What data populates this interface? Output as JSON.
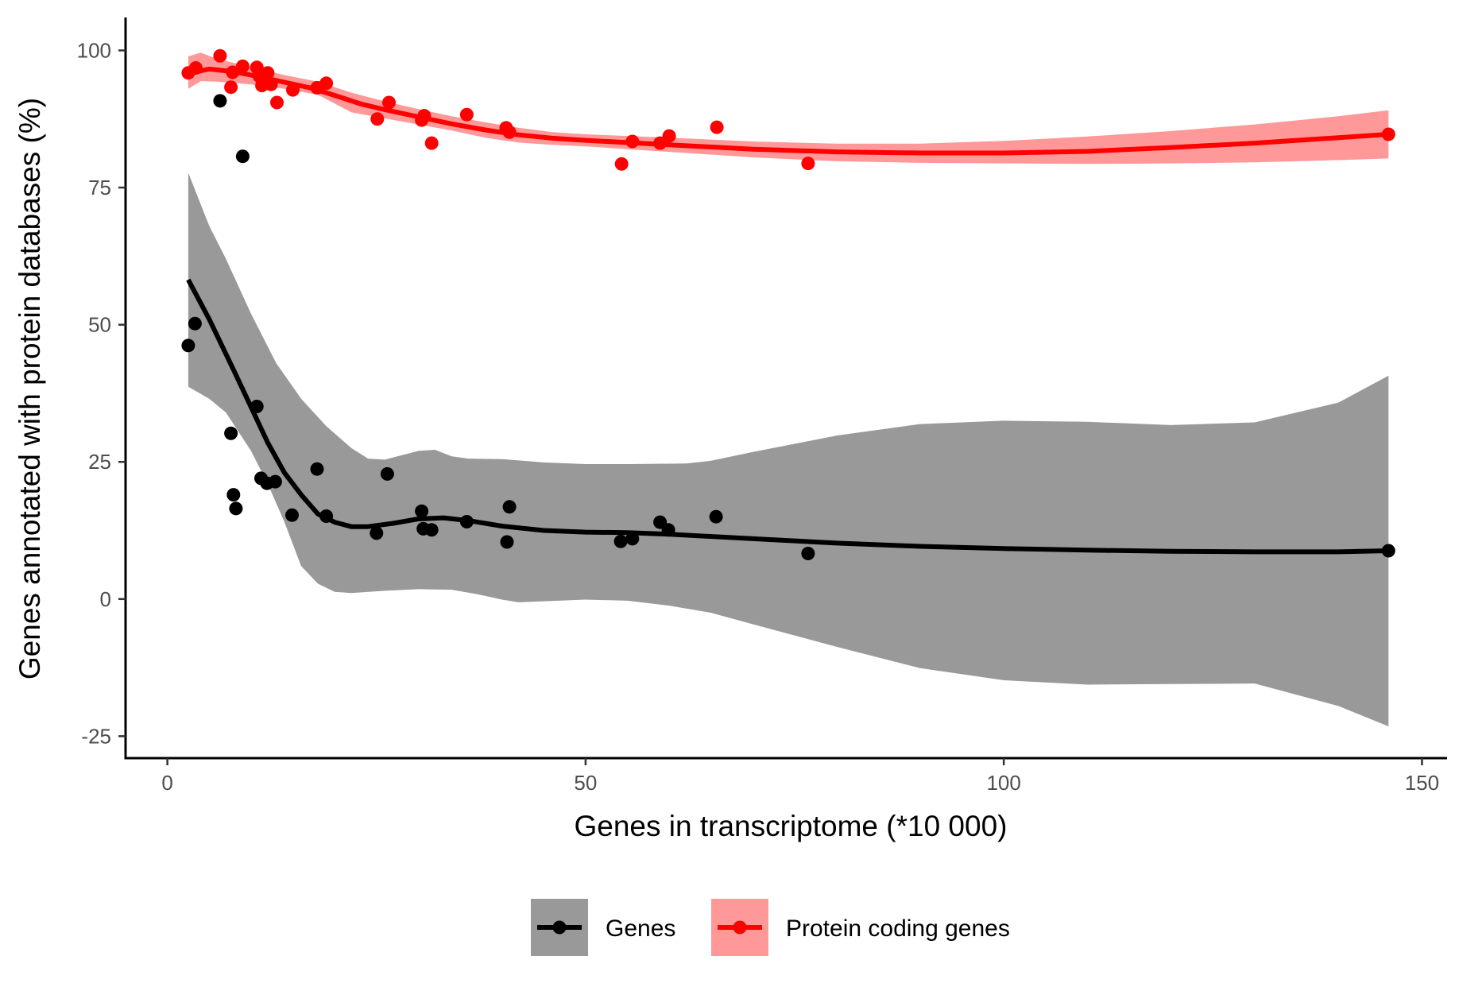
{
  "chart_data": {
    "type": "scatter",
    "title": "",
    "xlabel": "Genes in transcriptome (*10 000)",
    "ylabel": "Genes annotated with protein databases (%)",
    "xlim": [
      -5,
      153
    ],
    "ylim": [
      -29,
      106
    ],
    "x_ticks": [
      0,
      50,
      100,
      150
    ],
    "y_ticks": [
      -25,
      0,
      25,
      50,
      75,
      100
    ],
    "x_tick_labels": [
      "0",
      "50",
      "100",
      "150"
    ],
    "y_tick_labels": [
      "-25",
      "0",
      "25",
      "50",
      "75",
      "100"
    ],
    "grid": false,
    "legend_position": "bottom",
    "series": [
      {
        "name": "Genes",
        "color": "#000000",
        "band_color": "#999999",
        "points": [
          [
            2.5,
            46.2
          ],
          [
            3.3,
            50.2
          ],
          [
            6.3,
            90.8
          ],
          [
            7.6,
            30.2
          ],
          [
            7.9,
            19.0
          ],
          [
            8.2,
            16.5
          ],
          [
            9.0,
            80.7
          ],
          [
            10.7,
            35.1
          ],
          [
            11.2,
            22.0
          ],
          [
            11.9,
            21.1
          ],
          [
            12.9,
            21.4
          ],
          [
            14.9,
            15.3
          ],
          [
            17.9,
            23.7
          ],
          [
            19.0,
            15.1
          ],
          [
            25.0,
            12.0
          ],
          [
            26.3,
            22.8
          ],
          [
            30.4,
            16.0
          ],
          [
            30.6,
            12.8
          ],
          [
            31.6,
            12.6
          ],
          [
            35.8,
            14.1
          ],
          [
            40.6,
            10.4
          ],
          [
            40.9,
            16.8
          ],
          [
            54.2,
            10.5
          ],
          [
            55.6,
            11.0
          ],
          [
            58.9,
            14.0
          ],
          [
            59.9,
            12.6
          ],
          [
            65.6,
            15.0
          ],
          [
            76.6,
            8.3
          ],
          [
            146.0,
            8.8
          ]
        ],
        "fit": [
          [
            2.5,
            58.2
          ],
          [
            5,
            51
          ],
          [
            8,
            41.5
          ],
          [
            10,
            35
          ],
          [
            12,
            28.5
          ],
          [
            14,
            23
          ],
          [
            16,
            19
          ],
          [
            18,
            15.5
          ],
          [
            20,
            14
          ],
          [
            22,
            13.2
          ],
          [
            24,
            13.2
          ],
          [
            27,
            13.8
          ],
          [
            30,
            14.6
          ],
          [
            33,
            14.8
          ],
          [
            36,
            14.3
          ],
          [
            40,
            13.3
          ],
          [
            45,
            12.5
          ],
          [
            50,
            12.2
          ],
          [
            55,
            12.1
          ],
          [
            60,
            11.8
          ],
          [
            70,
            11.0
          ],
          [
            80,
            10.2
          ],
          [
            90,
            9.6
          ],
          [
            100,
            9.2
          ],
          [
            110,
            8.9
          ],
          [
            120,
            8.7
          ],
          [
            130,
            8.6
          ],
          [
            140,
            8.6
          ],
          [
            146,
            8.8
          ]
        ],
        "band_upper": [
          [
            2.5,
            77.7
          ],
          [
            5,
            68
          ],
          [
            7,
            62
          ],
          [
            10,
            52
          ],
          [
            13,
            43
          ],
          [
            16,
            36.5
          ],
          [
            19,
            31.5
          ],
          [
            22,
            27.5
          ],
          [
            24,
            25.6
          ],
          [
            26,
            25.4
          ],
          [
            28,
            26.2
          ],
          [
            30,
            27.0
          ],
          [
            32,
            27.2
          ],
          [
            34,
            26.0
          ],
          [
            36,
            25.6
          ],
          [
            40,
            25.5
          ],
          [
            45,
            24.9
          ],
          [
            50,
            24.6
          ],
          [
            55,
            24.6
          ],
          [
            62,
            24.7
          ],
          [
            65,
            25.2
          ],
          [
            70,
            26.8
          ],
          [
            80,
            29.8
          ],
          [
            90,
            31.9
          ],
          [
            100,
            32.5
          ],
          [
            110,
            32.3
          ],
          [
            120,
            31.7
          ],
          [
            130,
            32.2
          ],
          [
            140,
            35.8
          ],
          [
            146,
            40.7
          ]
        ],
        "band_lower": [
          [
            2.5,
            38.7
          ],
          [
            5,
            36.5
          ],
          [
            7,
            34
          ],
          [
            10,
            27
          ],
          [
            12,
            21
          ],
          [
            14,
            14
          ],
          [
            16,
            6
          ],
          [
            18,
            2.8
          ],
          [
            20,
            1.3
          ],
          [
            22,
            1.1
          ],
          [
            26,
            1.5
          ],
          [
            30,
            1.8
          ],
          [
            34,
            1.7
          ],
          [
            37,
            0.9
          ],
          [
            40,
            -0.1
          ],
          [
            42,
            -0.6
          ],
          [
            45,
            -0.4
          ],
          [
            50,
            -0.1
          ],
          [
            55,
            -0.3
          ],
          [
            60,
            -1.2
          ],
          [
            65,
            -2.5
          ],
          [
            70,
            -4.6
          ],
          [
            80,
            -8.7
          ],
          [
            90,
            -12.6
          ],
          [
            100,
            -14.8
          ],
          [
            110,
            -15.6
          ],
          [
            120,
            -15.5
          ],
          [
            130,
            -15.4
          ],
          [
            140,
            -19.5
          ],
          [
            146,
            -23.2
          ]
        ]
      },
      {
        "name": "Protein coding genes",
        "color": "#ff0000",
        "band_color": "#ff9999",
        "points": [
          [
            2.5,
            95.9
          ],
          [
            3.4,
            96.8
          ],
          [
            6.3,
            99.0
          ],
          [
            7.6,
            93.3
          ],
          [
            7.8,
            96.0
          ],
          [
            9.0,
            97.1
          ],
          [
            10.7,
            96.9
          ],
          [
            11.0,
            95.3
          ],
          [
            11.3,
            93.6
          ],
          [
            12.0,
            95.9
          ],
          [
            12.4,
            93.8
          ],
          [
            13.1,
            90.5
          ],
          [
            15.0,
            92.8
          ],
          [
            17.9,
            93.2
          ],
          [
            19.0,
            94.0
          ],
          [
            25.1,
            87.5
          ],
          [
            26.5,
            90.5
          ],
          [
            30.4,
            87.3
          ],
          [
            30.7,
            88.1
          ],
          [
            31.6,
            83.1
          ],
          [
            35.8,
            88.3
          ],
          [
            40.5,
            85.9
          ],
          [
            40.9,
            85.1
          ],
          [
            54.3,
            79.3
          ],
          [
            55.6,
            83.4
          ],
          [
            58.9,
            83.1
          ],
          [
            60.0,
            84.4
          ],
          [
            65.7,
            86.0
          ],
          [
            76.6,
            79.4
          ],
          [
            146.0,
            84.7
          ]
        ],
        "fit": [
          [
            2.5,
            95.8
          ],
          [
            5,
            96.6
          ],
          [
            8,
            96.1
          ],
          [
            11,
            95.2
          ],
          [
            14,
            94.2
          ],
          [
            17,
            93.2
          ],
          [
            20,
            91.8
          ],
          [
            23,
            90.3
          ],
          [
            26,
            89.2
          ],
          [
            30,
            87.9
          ],
          [
            34,
            86.6
          ],
          [
            38,
            85.5
          ],
          [
            42,
            84.6
          ],
          [
            46,
            84.0
          ],
          [
            50,
            83.6
          ],
          [
            55,
            83.2
          ],
          [
            60,
            82.8
          ],
          [
            70,
            82.0
          ],
          [
            80,
            81.5
          ],
          [
            90,
            81.3
          ],
          [
            100,
            81.3
          ],
          [
            110,
            81.6
          ],
          [
            120,
            82.3
          ],
          [
            130,
            83.1
          ],
          [
            140,
            84.1
          ],
          [
            146,
            84.7
          ]
        ],
        "band_upper": [
          [
            2.5,
            98.9
          ],
          [
            4,
            99.6
          ],
          [
            6,
            98.4
          ],
          [
            10,
            97.0
          ],
          [
            14,
            95.5
          ],
          [
            18,
            94.3
          ],
          [
            22,
            92.3
          ],
          [
            26,
            90.7
          ],
          [
            30,
            89.3
          ],
          [
            34,
            88.0
          ],
          [
            38,
            86.9
          ],
          [
            42,
            85.9
          ],
          [
            46,
            85.1
          ],
          [
            50,
            84.7
          ],
          [
            55,
            84.4
          ],
          [
            60,
            84.1
          ],
          [
            70,
            83.4
          ],
          [
            80,
            83.0
          ],
          [
            90,
            83.0
          ],
          [
            100,
            83.5
          ],
          [
            110,
            84.3
          ],
          [
            120,
            85.3
          ],
          [
            130,
            86.5
          ],
          [
            140,
            88.0
          ],
          [
            146,
            89.1
          ]
        ],
        "band_lower": [
          [
            2.5,
            93.0
          ],
          [
            4,
            94.4
          ],
          [
            6,
            94.3
          ],
          [
            10,
            93.8
          ],
          [
            14,
            93.0
          ],
          [
            18,
            91.9
          ],
          [
            22,
            88.7
          ],
          [
            26,
            87.6
          ],
          [
            30,
            86.5
          ],
          [
            34,
            85.4
          ],
          [
            38,
            84.1
          ],
          [
            42,
            83.2
          ],
          [
            46,
            82.8
          ],
          [
            50,
            82.5
          ],
          [
            55,
            82.0
          ],
          [
            60,
            81.5
          ],
          [
            70,
            80.5
          ],
          [
            80,
            79.8
          ],
          [
            90,
            79.5
          ],
          [
            100,
            79.4
          ],
          [
            110,
            79.3
          ],
          [
            120,
            79.4
          ],
          [
            130,
            79.6
          ],
          [
            140,
            80.0
          ],
          [
            146,
            80.3
          ]
        ]
      }
    ]
  }
}
